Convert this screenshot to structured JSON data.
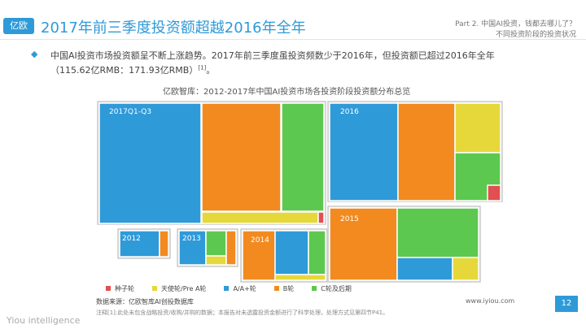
{
  "header": {
    "logo": "亿欧",
    "title": "2017年前三季度投资额超越2016年全年",
    "part": "Part 2. 中国AI投资，钱都去哪儿了？",
    "section": "不同投资阶段的投资状况"
  },
  "bullet": {
    "line1": "中国AI投资市场投资额呈不断上涨趋势。2017年前三季度虽投资频数少于2016年，但投资额已超过2016年全年",
    "line2": "（115.62亿RMB：171.93亿RMB）",
    "ref": "[1]",
    "end": "。"
  },
  "chart": {
    "title": "亿欧智库：2012-2017年中国AI投资市场各投资阶段投资额分布总览",
    "panels": [
      "2017Q1-Q3",
      "2016",
      "2015",
      "2012",
      "2013",
      "2014"
    ],
    "legend": [
      "种子轮",
      "天使轮/Pre A轮",
      "A/A+轮",
      "B轮",
      "C轮及后期"
    ]
  },
  "source": "数据来源：亿欧智库AI创投数据库",
  "note": "注释[1]:此处未包含战略投资/收购/并购的数据；本报告对未透露投资金额进行了科学处理，处理方式见第四节P41。",
  "footer": {
    "brand": "Yiou intelligence",
    "site": "www.iyiou.com",
    "page": "12"
  }
}
